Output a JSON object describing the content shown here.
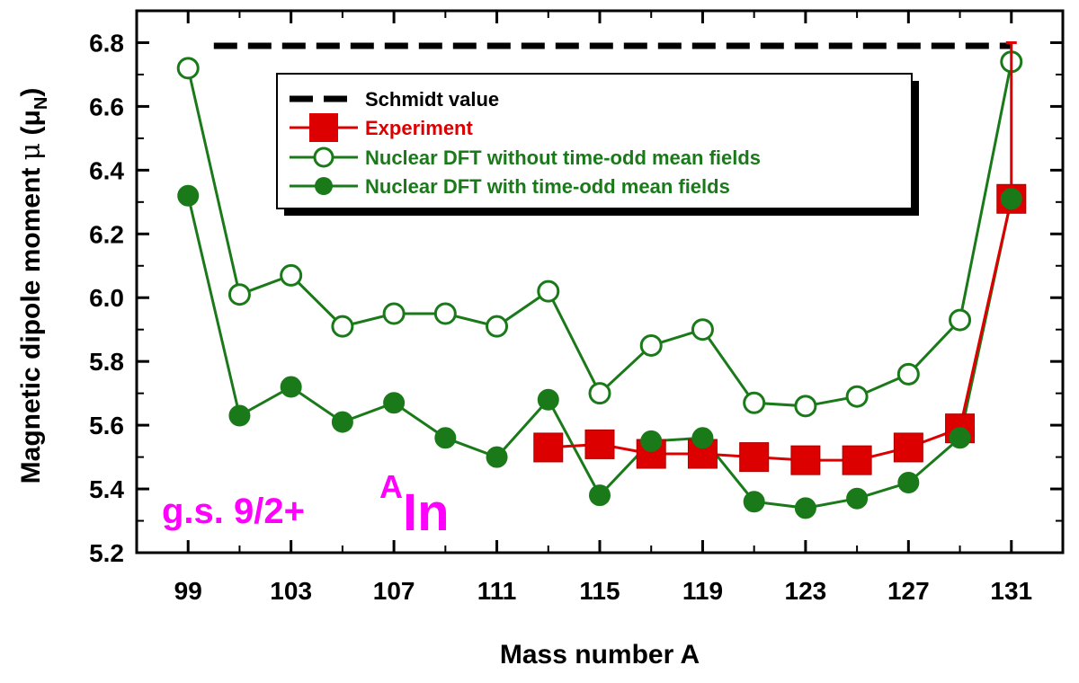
{
  "chart_data": {
    "type": "line",
    "xlabel": "Mass number A",
    "ylabel": {
      "main": "Magnetic dipole moment ",
      "symbol": "μ",
      "unit_open": " (μ",
      "unit_sub": "N",
      "unit_close": ")"
    },
    "xlim": [
      97,
      133
    ],
    "ylim": [
      5.2,
      6.9
    ],
    "x_ticks": [
      99,
      103,
      107,
      111,
      115,
      119,
      123,
      127,
      131
    ],
    "y_ticks": [
      5.2,
      5.4,
      5.6,
      5.8,
      6.0,
      6.2,
      6.4,
      6.6,
      6.8
    ],
    "series": [
      {
        "name": "Schmidt value",
        "style": "dashed",
        "color": "#000000",
        "points": [
          [
            100,
            6.79
          ],
          [
            131,
            6.79
          ]
        ]
      },
      {
        "name": "Experiment",
        "style": "line-square",
        "color": "#dd0000",
        "points": [
          [
            113,
            5.53
          ],
          [
            115,
            5.54
          ],
          [
            117,
            5.51
          ],
          [
            119,
            5.51
          ],
          [
            121,
            5.5
          ],
          [
            123,
            5.49
          ],
          [
            125,
            5.49
          ],
          [
            127,
            5.53
          ],
          [
            129,
            5.59
          ],
          [
            131,
            6.31
          ]
        ]
      },
      {
        "name": "Nuclear DFT without time-odd mean fields",
        "style": "line-open-circle",
        "color": "#1a7a1a",
        "points": [
          [
            99,
            6.72
          ],
          [
            101,
            6.01
          ],
          [
            103,
            6.07
          ],
          [
            105,
            5.91
          ],
          [
            107,
            5.95
          ],
          [
            109,
            5.95
          ],
          [
            111,
            5.91
          ],
          [
            113,
            6.02
          ],
          [
            115,
            5.7
          ],
          [
            117,
            5.85
          ],
          [
            119,
            5.9
          ],
          [
            121,
            5.67
          ],
          [
            123,
            5.66
          ],
          [
            125,
            5.69
          ],
          [
            127,
            5.76
          ],
          [
            129,
            5.93
          ],
          [
            131,
            6.74
          ]
        ]
      },
      {
        "name": "Nuclear DFT with time-odd mean fields",
        "style": "line-filled-circle",
        "color": "#1a7a1a",
        "points": [
          [
            99,
            6.32
          ],
          [
            101,
            5.63
          ],
          [
            103,
            5.72
          ],
          [
            105,
            5.61
          ],
          [
            107,
            5.67
          ],
          [
            109,
            5.56
          ],
          [
            111,
            5.5
          ],
          [
            113,
            5.68
          ],
          [
            115,
            5.38
          ],
          [
            117,
            5.55
          ],
          [
            119,
            5.56
          ],
          [
            121,
            5.36
          ],
          [
            123,
            5.34
          ],
          [
            125,
            5.37
          ],
          [
            127,
            5.42
          ],
          [
            129,
            5.56
          ],
          [
            131,
            6.31
          ]
        ]
      }
    ],
    "legend_position": "top-center",
    "grid": false,
    "annotations": {
      "state": "g.s. 9/2+",
      "isotope_sup": "A",
      "isotope_main": "In",
      "color": "#ff00ff"
    }
  }
}
